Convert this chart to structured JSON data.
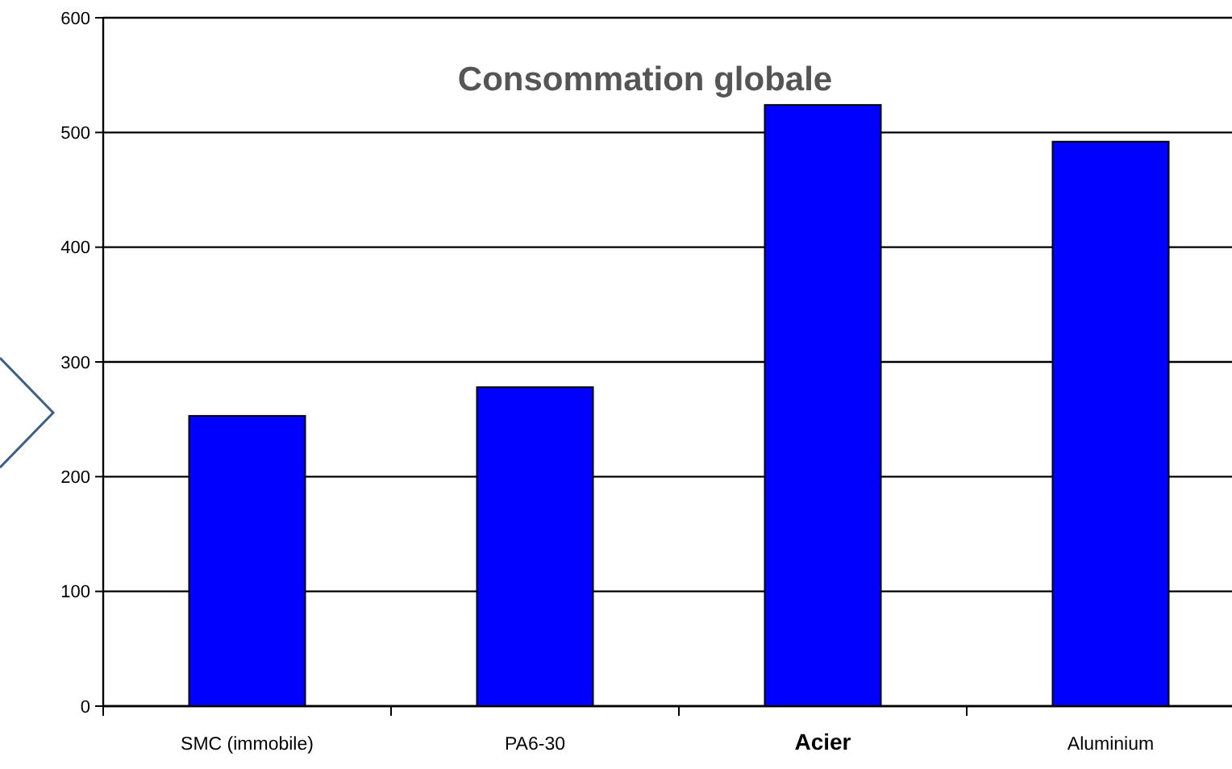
{
  "chart_data": {
    "type": "bar",
    "title": "Consommation globale",
    "categories": [
      "SMC (immobile)",
      "PA6-30",
      "Acier",
      "Aluminium"
    ],
    "values": [
      253,
      278,
      524,
      492
    ],
    "color": "#0000ff",
    "ylim": [
      0,
      600
    ],
    "yticks": [
      0,
      100,
      200,
      300,
      400,
      500,
      600
    ],
    "grid": "y"
  }
}
